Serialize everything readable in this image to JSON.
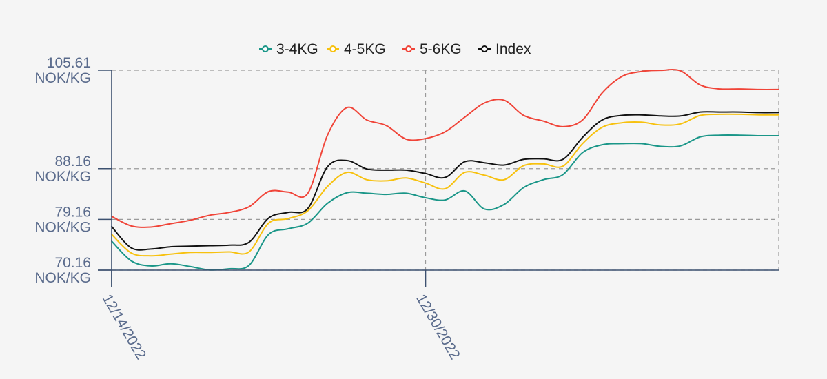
{
  "chart_data": {
    "type": "line",
    "title": "",
    "xlabel": "",
    "ylabel": "",
    "legend_position": "top-center",
    "grid": true,
    "ylim": [
      70.16,
      105.61
    ],
    "xlim": [
      "2022-12-14",
      "2023-01-17"
    ],
    "y_ticks": [
      {
        "value": 70.16,
        "line1": "70.16",
        "line2": "NOK/KG"
      },
      {
        "value": 79.16,
        "line1": "79.16",
        "line2": "NOK/KG"
      },
      {
        "value": 88.16,
        "line1": "88.16",
        "line2": "NOK/KG"
      },
      {
        "value": 105.61,
        "line1": "105.61",
        "line2": "NOK/KG"
      }
    ],
    "x_ticks": [
      {
        "date": "2022-12-14",
        "label": "12/14/2022"
      },
      {
        "date": "2022-12-30",
        "label": "12/30/2022"
      }
    ],
    "x": [
      "2022-12-14",
      "2022-12-15",
      "2022-12-16",
      "2022-12-17",
      "2022-12-18",
      "2022-12-19",
      "2022-12-20",
      "2022-12-21",
      "2022-12-22",
      "2022-12-23",
      "2022-12-24",
      "2022-12-25",
      "2022-12-26",
      "2022-12-27",
      "2022-12-28",
      "2022-12-29",
      "2022-12-30",
      "2022-12-31",
      "2023-01-01",
      "2023-01-02",
      "2023-01-03",
      "2023-01-04",
      "2023-01-05",
      "2023-01-06",
      "2023-01-07",
      "2023-01-08",
      "2023-01-09",
      "2023-01-10",
      "2023-01-11",
      "2023-01-12",
      "2023-01-13",
      "2023-01-14",
      "2023-01-15",
      "2023-01-16",
      "2023-01-17"
    ],
    "series": [
      {
        "name": "3-4KG",
        "color": "#1a9688",
        "values": [
          75.3,
          71.8,
          70.9,
          71.3,
          70.8,
          70.2,
          70.4,
          71.0,
          76.5,
          77.5,
          78.5,
          82.0,
          83.9,
          83.8,
          83.6,
          83.8,
          83.0,
          82.6,
          84.2,
          81.0,
          81.8,
          84.8,
          86.2,
          87.1,
          91.0,
          92.4,
          92.6,
          92.6,
          92.1,
          92.2,
          93.8,
          94.1,
          94.1,
          94.0,
          94.0
        ]
      },
      {
        "name": "4-5KG",
        "color": "#f7c10e",
        "values": [
          76.5,
          73.2,
          72.7,
          73.0,
          73.3,
          73.3,
          73.4,
          73.4,
          78.5,
          79.3,
          80.7,
          85.0,
          87.5,
          86.2,
          86.0,
          86.5,
          85.6,
          84.6,
          87.5,
          87.0,
          86.2,
          88.7,
          89.0,
          88.6,
          92.6,
          95.5,
          96.3,
          96.4,
          95.9,
          96.1,
          97.6,
          97.8,
          97.8,
          97.7,
          97.7
        ]
      },
      {
        "name": "5-6KG",
        "color": "#f04438",
        "values": [
          79.7,
          78.0,
          77.8,
          78.4,
          79.0,
          79.9,
          80.4,
          81.4,
          84.1,
          84.0,
          83.8,
          94.1,
          99.0,
          96.8,
          95.8,
          93.4,
          93.5,
          94.7,
          97.3,
          99.8,
          100.3,
          97.6,
          96.6,
          95.6,
          96.8,
          101.6,
          104.5,
          105.4,
          105.6,
          105.5,
          103.0,
          102.3,
          102.3,
          102.2,
          102.2
        ]
      },
      {
        "name": "Index",
        "color": "#111111",
        "values": [
          77.9,
          74.1,
          73.9,
          74.3,
          74.4,
          74.5,
          74.6,
          75.1,
          79.4,
          80.4,
          81.1,
          88.5,
          89.6,
          88.1,
          87.9,
          87.9,
          87.3,
          86.6,
          89.4,
          89.2,
          88.8,
          89.8,
          89.9,
          89.8,
          93.7,
          96.8,
          97.6,
          97.7,
          97.5,
          97.5,
          98.2,
          98.2,
          98.2,
          98.1,
          98.1
        ]
      }
    ]
  }
}
